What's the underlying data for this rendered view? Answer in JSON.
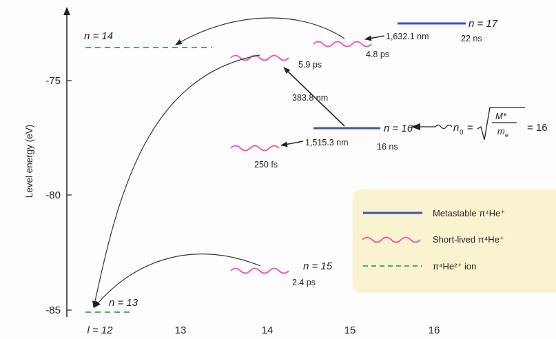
{
  "axes": {
    "ylabel": "Level energy (eV)",
    "yticks": [
      "-75",
      "-80",
      "-85"
    ],
    "xticks": [
      "l = 12",
      "13",
      "14",
      "15",
      "16"
    ]
  },
  "levels": {
    "n14": "n = 14",
    "n13": "n = 13",
    "n15": "n = 15",
    "n16": "n = 16",
    "n17": "n = 17"
  },
  "annotations": {
    "wl_1632": "1,632.1 nm",
    "t_22ns": "22 ns",
    "t_48ps": "4.8 ps",
    "t_59ps": "5.9 ps",
    "wl_3838": "383.8 nm",
    "wl_15153": "1,515.3 nm",
    "t_16ns": "16 ns",
    "t_250fs": "250 fs",
    "t_24ps": "2.4 ps",
    "n0_lhs": "n",
    "n0_sub": "0",
    "n0_eq": "=",
    "n0_M": "M*",
    "n0_me": "m",
    "n0_me_sub": "e",
    "n0_val": "= 16"
  },
  "legend": {
    "metastable": "Metastable π⁴He⁺",
    "shortlived": "Short-lived π⁴He⁺",
    "ion": "π⁴He²⁺ ion"
  },
  "colors": {
    "metastable": "#3b55b0",
    "shortlived": "#e85fb8",
    "ion": "#3fb25a",
    "legend_bg": "#faf3cf",
    "arrow": "#333333"
  }
}
